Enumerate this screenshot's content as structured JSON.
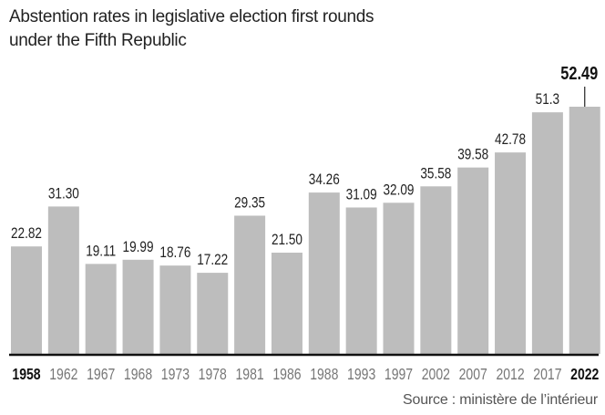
{
  "title_lines": [
    "Abstention rates in legislative election first rounds",
    "under the Fifth Republic"
  ],
  "source": "Source : ministère de l’intérieur",
  "chart_data": {
    "type": "bar",
    "title": "Abstention rates in legislative election first rounds under the Fifth Republic",
    "categories": [
      "1958",
      "1962",
      "1967",
      "1968",
      "1973",
      "1978",
      "1981",
      "1986",
      "1988",
      "1993",
      "1997",
      "2002",
      "2007",
      "2012",
      "2017",
      "2022"
    ],
    "values": [
      22.82,
      31.3,
      19.11,
      19.99,
      18.76,
      17.22,
      29.35,
      21.5,
      34.26,
      31.09,
      32.09,
      35.58,
      39.58,
      42.78,
      51.3,
      52.49
    ],
    "labels": [
      "22.82",
      "31.30",
      "19.11",
      "19.99",
      "18.76",
      "17.22",
      "29.35",
      "21.50",
      "34.26",
      "31.09",
      "32.09",
      "35.58",
      "39.58",
      "42.78",
      "51.3",
      "52.49"
    ],
    "highlighted": [
      "1958",
      "2022"
    ],
    "ylim": [
      0,
      55
    ],
    "grid": false,
    "colors": {
      "bar": "#bdbdbd",
      "axis": "#111111",
      "tick_label": "#777777",
      "highlight_label": "#111111",
      "value_label": "#222222"
    }
  }
}
